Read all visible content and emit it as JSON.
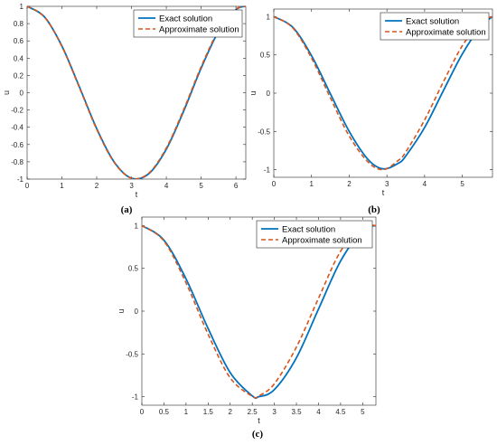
{
  "colors": {
    "exact": "#0072BD",
    "approx": "#D95319",
    "axis": "#262626"
  },
  "chart_data": [
    {
      "type": "line",
      "panel": "(a)",
      "xlabel": "t",
      "ylabel": "u",
      "xlim": [
        0,
        6.2832
      ],
      "ylim": [
        -1,
        1
      ],
      "xticks": [
        0,
        1,
        2,
        3,
        4,
        5,
        6
      ],
      "xtick_labels": [
        "0",
        "1",
        "2",
        "3",
        "4",
        "5",
        "6"
      ],
      "yticks": [
        -1,
        -0.8,
        -0.6,
        -0.4,
        -0.2,
        0,
        0.2,
        0.4,
        0.6,
        0.8,
        1
      ],
      "ytick_labels": [
        "-1",
        "-0.8",
        "-0.6",
        "-0.4",
        "-0.2",
        "0",
        "0.2",
        "0.4",
        "0.6",
        "0.8",
        "1"
      ],
      "legend": "top-right",
      "x": [
        0,
        0.5,
        1,
        1.5,
        2,
        2.5,
        3,
        3.5,
        4,
        4.5,
        5,
        5.5,
        6,
        6.2832
      ],
      "series": [
        {
          "name": "Exact solution",
          "style": "solid",
          "values": [
            1.0,
            0.877,
            0.54,
            0.07,
            -0.416,
            -0.801,
            -0.99,
            -0.937,
            -0.654,
            -0.211,
            0.284,
            0.709,
            0.96,
            1.0
          ]
        },
        {
          "name": "Approximate solution",
          "style": "dashed",
          "values": [
            1.0,
            0.875,
            0.535,
            0.062,
            -0.424,
            -0.806,
            -0.99,
            -0.93,
            -0.64,
            -0.195,
            0.3,
            0.72,
            0.965,
            1.0
          ]
        }
      ]
    },
    {
      "type": "line",
      "panel": "(b)",
      "xlabel": "t",
      "ylabel": "u",
      "xlim": [
        0,
        5.8
      ],
      "ylim": [
        -1.1,
        1.1
      ],
      "xticks": [
        0,
        1,
        2,
        3,
        4,
        5
      ],
      "xtick_labels": [
        "0",
        "1",
        "2",
        "3",
        "4",
        "5"
      ],
      "yticks": [
        -1,
        -0.5,
        0,
        0.5,
        1
      ],
      "ytick_labels": [
        "-1",
        "-0.5",
        "0",
        "0.5",
        "1"
      ],
      "legend": "top-right",
      "x": [
        0,
        0.5,
        1,
        1.5,
        2,
        2.5,
        2.9,
        3.3,
        3.5,
        4,
        4.5,
        5,
        5.5,
        5.8
      ],
      "series": [
        {
          "name": "Exact solution",
          "style": "solid",
          "values": [
            1.0,
            0.863,
            0.49,
            -0.007,
            -0.5,
            -0.867,
            -0.99,
            -0.917,
            -0.822,
            -0.449,
            0.035,
            0.512,
            0.877,
            1.0
          ]
        },
        {
          "name": "Approximate solution",
          "style": "dashed",
          "values": [
            1.0,
            0.855,
            0.46,
            -0.06,
            -0.56,
            -0.9,
            -1.0,
            -0.88,
            -0.77,
            -0.35,
            0.15,
            0.62,
            0.93,
            1.0
          ]
        }
      ]
    },
    {
      "type": "line",
      "panel": "(c)",
      "xlabel": "t",
      "ylabel": "u",
      "xlim": [
        0,
        5.3
      ],
      "ylim": [
        -1.1,
        1.1
      ],
      "xticks": [
        0,
        0.5,
        1,
        1.5,
        2,
        2.5,
        3,
        3.5,
        4,
        4.5,
        5
      ],
      "xtick_labels": [
        "0",
        "0.5",
        "1",
        "1.5",
        "2",
        "2.5",
        "3",
        "3.5",
        "4",
        "4.5",
        "5"
      ],
      "yticks": [
        -1,
        -0.5,
        0,
        0.5,
        1
      ],
      "ytick_labels": [
        "-1",
        "-0.5",
        "0",
        "0.5",
        "1"
      ],
      "legend": "top-right",
      "x": [
        0,
        0.5,
        1,
        1.5,
        2,
        2.5,
        2.65,
        3,
        3.5,
        4,
        4.5,
        5,
        5.3
      ],
      "series": [
        {
          "name": "Exact solution",
          "style": "solid",
          "values": [
            1.0,
            0.83,
            0.377,
            -0.203,
            -0.719,
            -0.991,
            -1.0,
            -0.918,
            -0.545,
            0.024,
            0.586,
            0.947,
            1.0
          ]
        },
        {
          "name": "Approximate solution",
          "style": "dashed",
          "values": [
            1.0,
            0.82,
            0.33,
            -0.27,
            -0.78,
            -0.995,
            -0.99,
            -0.85,
            -0.42,
            0.15,
            0.7,
            0.98,
            1.0
          ]
        }
      ]
    }
  ]
}
